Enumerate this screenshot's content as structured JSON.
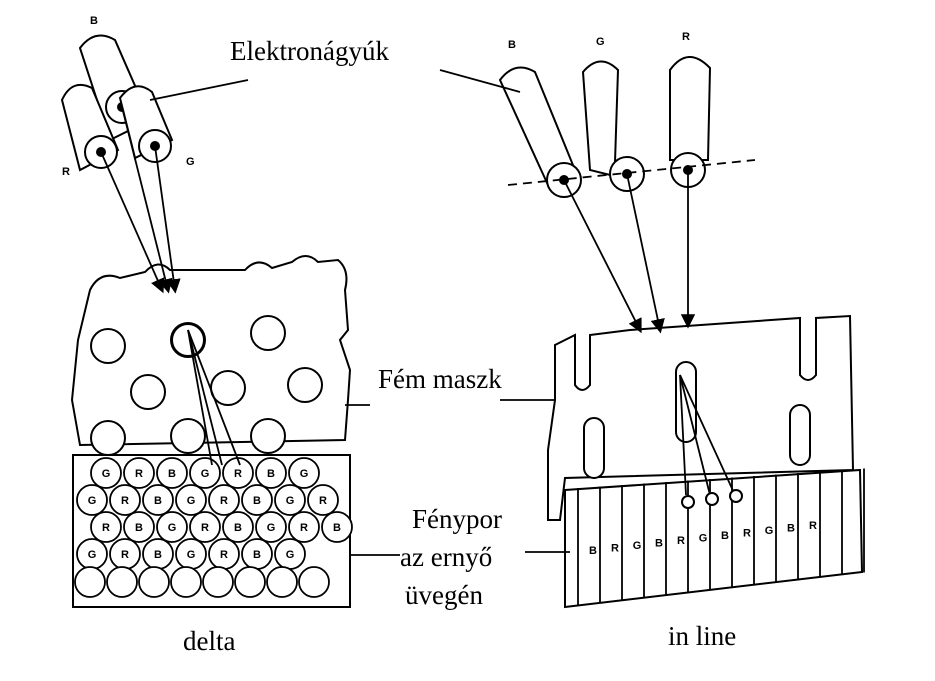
{
  "labels": {
    "guns": "Elektronágyúk",
    "mask": "Fém maszk",
    "phosphor_line1": "Fénypor",
    "phosphor_line2": "az ernyő",
    "phosphor_line3": "üvegén",
    "delta": "delta",
    "inline": "in line"
  },
  "delta": {
    "gun_letters": [
      "B",
      "R",
      "G"
    ],
    "phosphor_rows": [
      [
        "G",
        "R",
        "B",
        "G",
        "R",
        "B",
        "G"
      ],
      [
        "G",
        "R",
        "B",
        "G",
        "R",
        "B",
        "G",
        "R"
      ],
      [
        "R",
        "B",
        "G",
        "R",
        "B",
        "G",
        "R",
        "B"
      ],
      [
        "G",
        "R",
        "B",
        "G",
        "R",
        "B",
        "G"
      ]
    ]
  },
  "inline": {
    "gun_letters": [
      "B",
      "G",
      "R"
    ],
    "stripes": [
      "B",
      "R",
      "G",
      "B",
      "R",
      "G",
      "B",
      "R",
      "G",
      "B",
      "R"
    ]
  },
  "colors": {
    "ink": "#000000",
    "paper": "#ffffff"
  }
}
